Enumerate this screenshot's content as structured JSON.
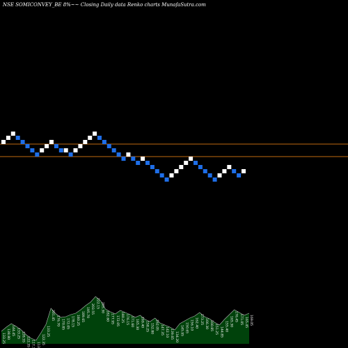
{
  "title": "NSE SOMICONVEY_BE 8%~~ Closing Daily data Renko charts MunafaSutra.com",
  "colors": {
    "background": "#000000",
    "up_brick": "#ffffff",
    "down_brick": "#1e6ee8",
    "level_line": "#c06a10",
    "volume_fill": "#00420b",
    "volume_line": "#b8b8b8",
    "label_text": "#f2f2f2"
  },
  "chart_data": [
    {
      "type": "renko",
      "brick_size_note": "8%",
      "bricks": [
        {
          "dir": "up",
          "level": 0
        },
        {
          "dir": "up",
          "level": 1
        },
        {
          "dir": "up",
          "level": 2
        },
        {
          "dir": "down",
          "level": 1
        },
        {
          "dir": "down",
          "level": 0
        },
        {
          "dir": "down",
          "level": -1
        },
        {
          "dir": "down",
          "level": -2
        },
        {
          "dir": "down",
          "level": -3
        },
        {
          "dir": "up",
          "level": -2
        },
        {
          "dir": "up",
          "level": -1
        },
        {
          "dir": "up",
          "level": 0
        },
        {
          "dir": "down",
          "level": -1
        },
        {
          "dir": "down",
          "level": -2
        },
        {
          "dir": "up",
          "level": -2
        },
        {
          "dir": "down",
          "level": -3
        },
        {
          "dir": "up",
          "level": -2
        },
        {
          "dir": "up",
          "level": -1
        },
        {
          "dir": "up",
          "level": 0
        },
        {
          "dir": "up",
          "level": 1
        },
        {
          "dir": "up",
          "level": 2
        },
        {
          "dir": "down",
          "level": 1
        },
        {
          "dir": "down",
          "level": 0
        },
        {
          "dir": "down",
          "level": -1
        },
        {
          "dir": "down",
          "level": -2
        },
        {
          "dir": "down",
          "level": -3
        },
        {
          "dir": "down",
          "level": -4
        },
        {
          "dir": "up",
          "level": -3
        },
        {
          "dir": "down",
          "level": -4
        },
        {
          "dir": "down",
          "level": -5
        },
        {
          "dir": "up",
          "level": -4
        },
        {
          "dir": "down",
          "level": -5
        },
        {
          "dir": "down",
          "level": -6
        },
        {
          "dir": "down",
          "level": -7
        },
        {
          "dir": "down",
          "level": -8
        },
        {
          "dir": "down",
          "level": -9
        },
        {
          "dir": "up",
          "level": -8
        },
        {
          "dir": "up",
          "level": -7
        },
        {
          "dir": "up",
          "level": -6
        },
        {
          "dir": "up",
          "level": -5
        },
        {
          "dir": "up",
          "level": -4
        },
        {
          "dir": "down",
          "level": -5
        },
        {
          "dir": "down",
          "level": -6
        },
        {
          "dir": "down",
          "level": -7
        },
        {
          "dir": "down",
          "level": -8
        },
        {
          "dir": "down",
          "level": -9
        },
        {
          "dir": "up",
          "level": -8
        },
        {
          "dir": "up",
          "level": -7
        },
        {
          "dir": "up",
          "level": -6
        },
        {
          "dir": "down",
          "level": -7
        },
        {
          "dir": "down",
          "level": -8
        },
        {
          "dir": "up",
          "level": -7
        }
      ],
      "levels": [
        {
          "name": "upper",
          "level": -0.5
        },
        {
          "name": "lower",
          "level": -3.5
        }
      ]
    },
    {
      "type": "area",
      "series_label": "volume / price labels",
      "x": [
        1,
        2,
        3,
        4,
        5,
        6,
        7,
        8,
        9,
        10,
        11,
        12,
        13,
        14,
        15,
        16,
        17,
        18,
        19,
        20,
        21,
        22,
        23,
        24,
        25,
        26,
        27,
        28,
        29,
        30,
        31,
        32,
        33,
        34,
        35,
        36,
        37,
        38,
        39,
        40,
        41,
        42,
        43,
        44,
        45,
        46,
        47,
        48,
        49,
        50,
        51
      ],
      "values": [
        18,
        24,
        29,
        25,
        20,
        13,
        8,
        5,
        16,
        28,
        51,
        43,
        38,
        39,
        42,
        44,
        49,
        55,
        60,
        68,
        62,
        50,
        46,
        43,
        48,
        45,
        42,
        38,
        41,
        35,
        32,
        37,
        30,
        27,
        24,
        20,
        29,
        33,
        37,
        40,
        45,
        39,
        36,
        31,
        27,
        35,
        42,
        49,
        45,
        41,
        44
      ],
      "labels": [
        "133.25",
        "138.80",
        "144.45",
        "133.25",
        "128.55",
        "122.35",
        "117.30",
        "113.05",
        "122.35",
        "133.25",
        "201.45",
        "176.70",
        "170.85",
        "172.05",
        "178.15",
        "180.25",
        "189.65",
        "195.70",
        "203.55",
        "222.15",
        "205.30",
        "182.60",
        "177.95",
        "172.05",
        "180.25",
        "176.15",
        "171.60",
        "165.30",
        "169.40",
        "158.25",
        "152.80",
        "162.05",
        "147.35",
        "142.10",
        "139.65",
        "134.20",
        "145.95",
        "150.65",
        "156.10",
        "162.40",
        "173.25",
        "166.30",
        "160.85",
        "151.25",
        "144.85",
        "155.40",
        "165.30",
        "176.45",
        "171.05",
        "165.45",
        "169.05"
      ],
      "ylim": [
        0,
        80
      ]
    }
  ]
}
